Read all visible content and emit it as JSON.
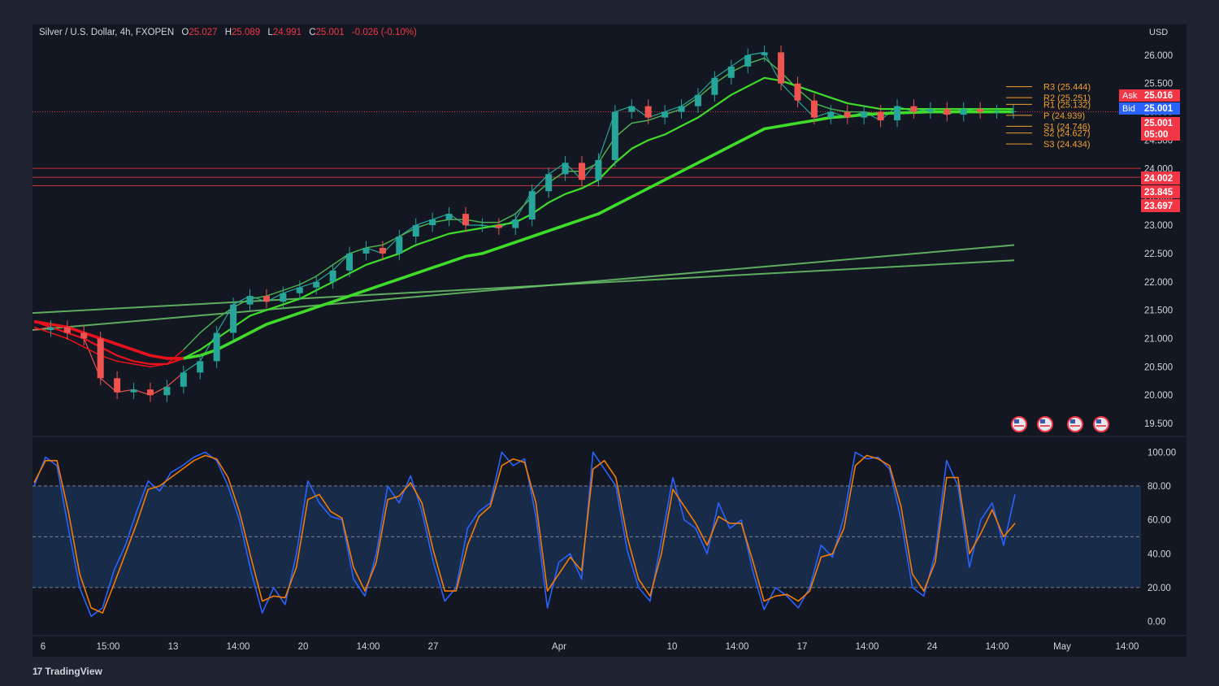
{
  "header": {
    "symbol": "Silver / U.S. Dollar, 4h, FXOPEN",
    "open_label": "O",
    "open": "25.027",
    "high_label": "H",
    "high": "25.089",
    "low_label": "L",
    "low": "24.991",
    "close_label": "C",
    "close": "25.001",
    "change": "-0.026 (-0.10%)"
  },
  "currency": "USD",
  "brand": "TradingView",
  "colors": {
    "background": "#131722",
    "up": "#26a69a",
    "down": "#ef5350",
    "green_ma": "#3fdc2a",
    "red_ma": "#e8121c",
    "stoch_k": "#2962ff",
    "stoch_d": "#f57c00",
    "pivot": "#f0a030",
    "level": "#f23645"
  },
  "chart_data": [
    {
      "type": "line",
      "title": "Silver / U.S. Dollar, 4h",
      "y_ticks": [
        "26.000",
        "25.500",
        "25.000",
        "24.500",
        "24.000",
        "23.500",
        "23.000",
        "22.500",
        "22.000",
        "21.500",
        "21.000",
        "20.500",
        "20.000",
        "19.500"
      ],
      "ylim": [
        19.3,
        26.4
      ],
      "x_ticks": [
        "6",
        "15:00",
        "13",
        "14:00",
        "20",
        "14:00",
        "27",
        "Apr",
        "10",
        "14:00",
        "17",
        "14:00",
        "24",
        "14:00",
        "May",
        "14:00"
      ],
      "series": [
        {
          "values": [
            21.15,
            21.2,
            21.1,
            21.0,
            20.3,
            20.05,
            20.1,
            20.0,
            20.15,
            20.4,
            20.6,
            21.1,
            21.6,
            21.75,
            21.65,
            21.8,
            21.9,
            22.0,
            22.2,
            22.5,
            22.6,
            22.5,
            22.8,
            23.0,
            23.1,
            23.2,
            23.0,
            23.0,
            22.95,
            23.1,
            23.6,
            23.9,
            24.1,
            23.8,
            24.15,
            25.0,
            25.1,
            24.9,
            25.0,
            25.1,
            25.3,
            25.6,
            25.8,
            26.0,
            26.05,
            25.5,
            25.2,
            24.9,
            25.0,
            24.9,
            25.0,
            24.85,
            25.1,
            25.0,
            25.05,
            24.95,
            25.05,
            25.0,
            25.0,
            25.01
          ]
        },
        {
          "values": [
            21.2,
            21.1,
            21.0,
            20.85,
            20.7,
            20.6,
            20.55,
            20.5,
            20.55,
            20.8,
            21.1,
            21.35,
            21.55,
            21.7,
            21.75,
            21.85,
            21.95,
            22.1,
            22.3,
            22.5,
            22.6,
            22.65,
            22.8,
            22.95,
            23.05,
            23.1,
            23.1,
            23.05,
            23.05,
            23.2,
            23.5,
            23.75,
            23.95,
            23.95,
            24.1,
            24.55,
            24.8,
            24.85,
            24.95,
            25.05,
            25.25,
            25.5,
            25.7,
            25.85,
            25.95,
            25.7,
            25.4,
            25.15,
            25.05,
            25.0,
            25.0,
            24.95,
            25.0,
            25.0,
            25.0,
            25.0,
            25.0,
            25.0,
            25.0,
            25.0
          ]
        },
        {
          "values": [
            21.3,
            21.2,
            21.1,
            21.0,
            20.85,
            20.7,
            20.6,
            20.55,
            20.55,
            20.65,
            20.8,
            21.0,
            21.2,
            21.4,
            21.5,
            21.6,
            21.7,
            21.85,
            22.0,
            22.15,
            22.3,
            22.4,
            22.5,
            22.65,
            22.75,
            22.85,
            22.9,
            22.95,
            23.0,
            23.05,
            23.2,
            23.4,
            23.55,
            23.65,
            23.8,
            24.1,
            24.35,
            24.5,
            24.6,
            24.75,
            24.9,
            25.1,
            25.3,
            25.45,
            25.6,
            25.55,
            25.45,
            25.35,
            25.25,
            25.15,
            25.1,
            25.05,
            25.05,
            25.05,
            25.05,
            25.05,
            25.05,
            25.05,
            25.05,
            25.05
          ]
        },
        {
          "values": [
            21.3,
            21.25,
            21.2,
            21.1,
            21.0,
            20.9,
            20.8,
            20.7,
            20.65,
            20.65,
            20.7,
            20.8,
            20.95,
            21.1,
            21.25,
            21.35,
            21.45,
            21.55,
            21.65,
            21.75,
            21.85,
            21.95,
            22.05,
            22.15,
            22.25,
            22.35,
            22.45,
            22.5,
            22.6,
            22.7,
            22.8,
            22.9,
            23.0,
            23.1,
            23.2,
            23.35,
            23.5,
            23.65,
            23.8,
            23.95,
            24.1,
            24.25,
            24.4,
            24.55,
            24.7,
            24.75,
            24.8,
            24.85,
            24.9,
            24.92,
            24.95,
            24.97,
            24.98,
            24.99,
            25.0,
            25.0,
            25.0,
            25.0,
            25.0,
            25.0
          ]
        }
      ],
      "price_markers": [
        {
          "label": "Ask",
          "value": "25.016"
        },
        {
          "label": "Bid",
          "value": "25.001"
        },
        {
          "label": "",
          "value": "25.001"
        },
        {
          "label": "",
          "value": "05:00"
        }
      ],
      "horizontal_levels": [
        "24.002",
        "23.845",
        "23.697"
      ],
      "pivots": [
        {
          "label": "R3 (25.444)",
          "value": 25.444
        },
        {
          "label": "R2 (25.251)",
          "value": 25.251
        },
        {
          "label": "R1 (25.132)",
          "value": 25.132
        },
        {
          "label": "P (24.939)",
          "value": 24.939
        },
        {
          "label": "S1 (24.746)",
          "value": 24.746
        },
        {
          "label": "S2 (24.627)",
          "value": 24.627
        },
        {
          "label": "S3 (24.434)",
          "value": 24.434
        }
      ]
    },
    {
      "type": "line",
      "y_ticks": [
        "100.00",
        "80.00",
        "60.00",
        "40.00",
        "20.00",
        "0.00"
      ],
      "ylim": [
        -5,
        103
      ],
      "band": [
        20,
        80
      ],
      "series": [
        {
          "values": [
            80,
            97,
            92,
            55,
            20,
            3,
            8,
            30,
            45,
            65,
            83,
            77,
            88,
            92,
            97,
            100,
            95,
            80,
            60,
            30,
            5,
            20,
            10,
            40,
            83,
            70,
            62,
            60,
            25,
            15,
            40,
            80,
            70,
            86,
            65,
            35,
            12,
            20,
            55,
            65,
            70,
            100,
            92,
            96,
            62,
            8,
            35,
            40,
            25,
            100,
            90,
            80,
            42,
            20,
            12,
            48,
            85,
            60,
            55,
            40,
            70,
            55,
            60,
            30,
            7,
            20,
            15,
            8,
            20,
            45,
            38,
            62,
            100,
            96,
            97,
            90,
            60,
            20,
            15,
            40,
            95,
            80,
            32,
            60,
            70,
            45,
            75
          ]
        },
        {
          "values": [
            82,
            95,
            95,
            65,
            28,
            8,
            5,
            22,
            40,
            58,
            78,
            80,
            85,
            90,
            95,
            98,
            96,
            85,
            65,
            38,
            12,
            15,
            14,
            32,
            72,
            75,
            65,
            61,
            32,
            18,
            35,
            72,
            74,
            82,
            70,
            42,
            18,
            18,
            45,
            62,
            68,
            92,
            96,
            94,
            70,
            18,
            28,
            38,
            30,
            90,
            95,
            85,
            50,
            25,
            15,
            40,
            78,
            68,
            58,
            45,
            62,
            58,
            58,
            36,
            12,
            15,
            16,
            12,
            18,
            38,
            40,
            55,
            92,
            98,
            96,
            92,
            68,
            28,
            18,
            35,
            85,
            85,
            40,
            52,
            66,
            50,
            58
          ]
        }
      ]
    }
  ]
}
